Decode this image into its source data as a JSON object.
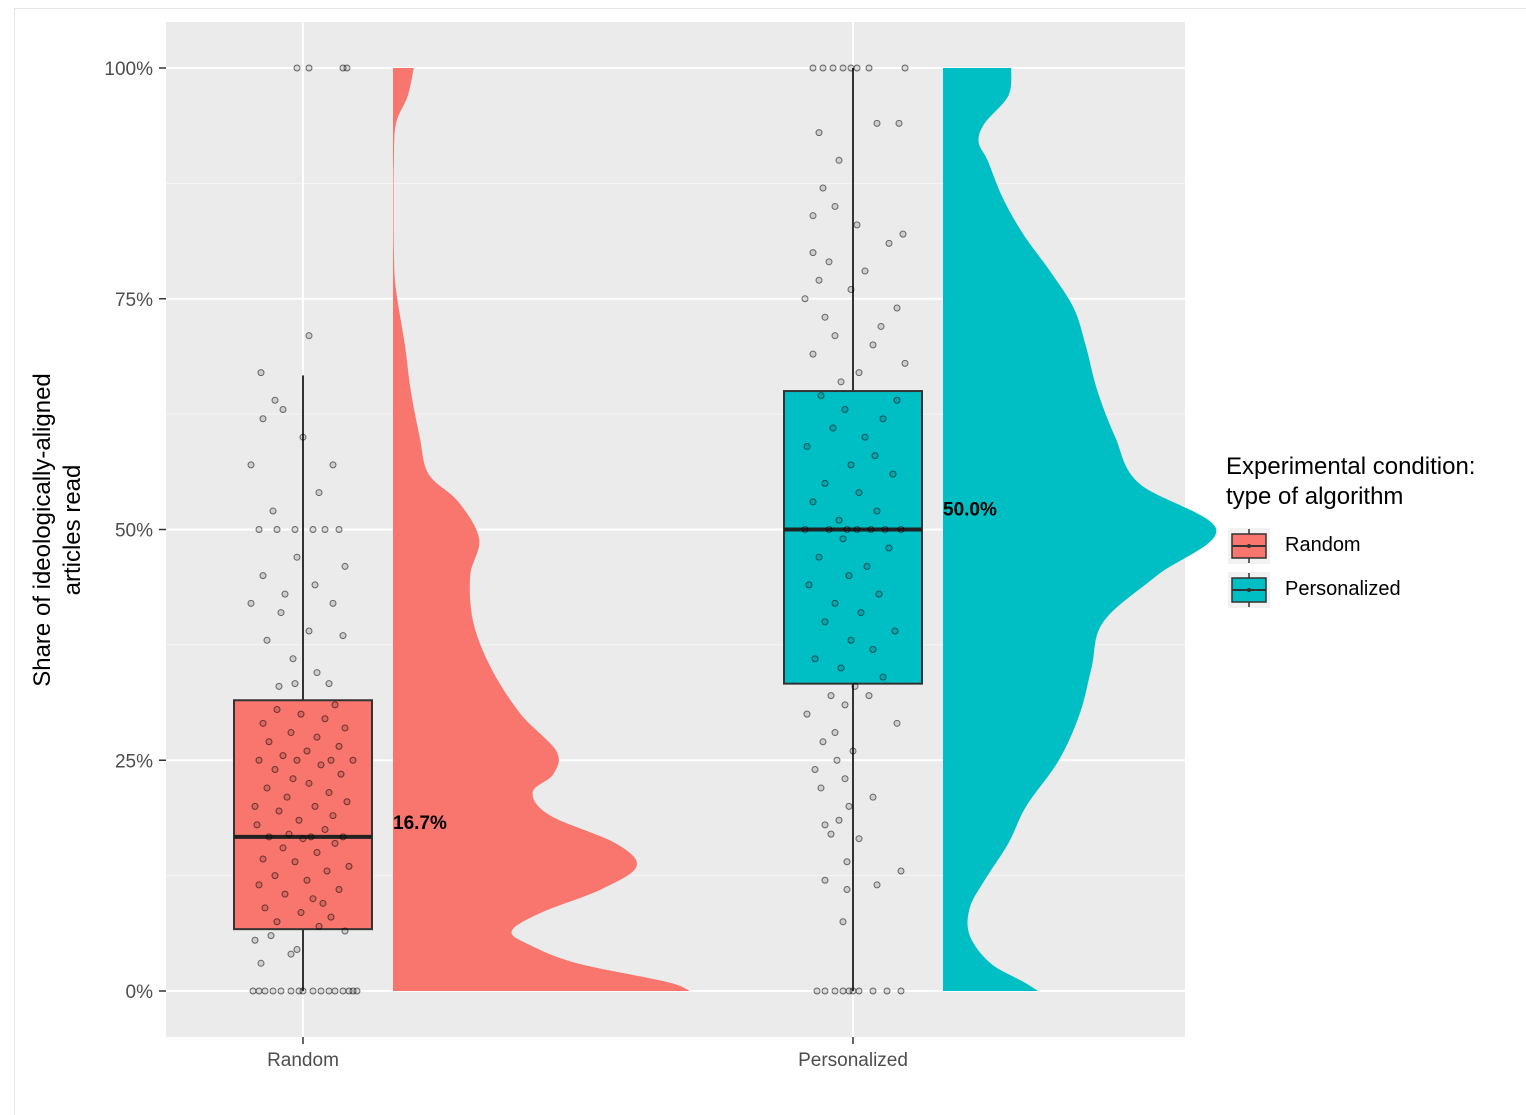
{
  "chart_data": {
    "type": "raincloud",
    "ylabel_line1": "Share of ideologically-aligned",
    "ylabel_line2": "articles read",
    "xlabel": "",
    "categories": [
      "Random",
      "Personalized"
    ],
    "ylim": [
      0,
      1
    ],
    "y_ticks": [
      0,
      0.25,
      0.5,
      0.75,
      1
    ],
    "y_tick_labels": [
      "0%",
      "25%",
      "50%",
      "75%",
      "100%"
    ],
    "grid": true,
    "legend": {
      "title_line1": "Experimental condition:",
      "title_line2": "type of algorithm",
      "placement": "right",
      "entries": [
        "Random",
        "Personalized"
      ]
    },
    "colors": {
      "Random": "#F8766D",
      "Personalized": "#00BFC4",
      "panel": "#EBEBEB",
      "grid": "#FFFFFF"
    },
    "series": [
      {
        "name": "Random",
        "box": {
          "q1": 0.067,
          "median": 0.167,
          "q3": 0.315,
          "whisker_low": 0,
          "whisker_high": 0.667
        },
        "median_label": "16.7%",
        "density": [
          [
            0,
            1.0
          ],
          [
            0.01,
            0.92
          ],
          [
            0.03,
            0.62
          ],
          [
            0.05,
            0.46
          ],
          [
            0.065,
            0.4
          ],
          [
            0.085,
            0.5
          ],
          [
            0.11,
            0.7
          ],
          [
            0.135,
            0.82
          ],
          [
            0.16,
            0.75
          ],
          [
            0.19,
            0.53
          ],
          [
            0.215,
            0.47
          ],
          [
            0.235,
            0.54
          ],
          [
            0.26,
            0.55
          ],
          [
            0.3,
            0.43
          ],
          [
            0.35,
            0.33
          ],
          [
            0.4,
            0.27
          ],
          [
            0.45,
            0.26
          ],
          [
            0.49,
            0.29
          ],
          [
            0.53,
            0.22
          ],
          [
            0.56,
            0.12
          ],
          [
            0.6,
            0.09
          ],
          [
            0.65,
            0.06
          ],
          [
            0.7,
            0.04
          ],
          [
            0.76,
            0.01
          ],
          [
            0.8,
            0.003
          ],
          [
            0.85,
            0.002
          ],
          [
            0.9,
            0.003
          ],
          [
            0.94,
            0.01
          ],
          [
            0.97,
            0.05
          ],
          [
            1.0,
            0.07
          ]
        ],
        "points": [
          [
            0,
            0
          ],
          [
            0,
            -22
          ],
          [
            0,
            -38
          ],
          [
            0,
            -50
          ],
          [
            0,
            -30
          ],
          [
            0,
            18
          ],
          [
            0,
            26
          ],
          [
            0,
            32
          ],
          [
            0,
            40
          ],
          [
            0,
            50
          ],
          [
            0,
            54
          ],
          [
            0,
            -12
          ],
          [
            0,
            10
          ],
          [
            0,
            -4
          ],
          [
            0,
            -44
          ],
          [
            0,
            46
          ],
          [
            0.03,
            -42
          ],
          [
            0.04,
            -12
          ],
          [
            0.045,
            -6
          ],
          [
            0.055,
            -48
          ],
          [
            0.06,
            -32
          ],
          [
            0.065,
            42
          ],
          [
            0.07,
            16
          ],
          [
            0.075,
            -26
          ],
          [
            0.08,
            28
          ],
          [
            0.085,
            -2
          ],
          [
            0.09,
            -38
          ],
          [
            0.095,
            20
          ],
          [
            0.1,
            10
          ],
          [
            0.105,
            -18
          ],
          [
            0.11,
            36
          ],
          [
            0.115,
            -44
          ],
          [
            0.12,
            4
          ],
          [
            0.125,
            -28
          ],
          [
            0.13,
            24
          ],
          [
            0.135,
            46
          ],
          [
            0.14,
            -8
          ],
          [
            0.143,
            -40
          ],
          [
            0.15,
            14
          ],
          [
            0.155,
            -20
          ],
          [
            0.16,
            32
          ],
          [
            0.165,
            0
          ],
          [
            0.167,
            -34
          ],
          [
            0.167,
            8
          ],
          [
            0.167,
            40
          ],
          [
            0.17,
            -14
          ],
          [
            0.175,
            22
          ],
          [
            0.18,
            -46
          ],
          [
            0.185,
            -4
          ],
          [
            0.19,
            30
          ],
          [
            0.195,
            -24
          ],
          [
            0.2,
            -48
          ],
          [
            0.2,
            12
          ],
          [
            0.205,
            44
          ],
          [
            0.21,
            -16
          ],
          [
            0.215,
            26
          ],
          [
            0.22,
            -36
          ],
          [
            0.225,
            6
          ],
          [
            0.23,
            -10
          ],
          [
            0.235,
            38
          ],
          [
            0.24,
            -28
          ],
          [
            0.245,
            18
          ],
          [
            0.25,
            -44
          ],
          [
            0.25,
            -6
          ],
          [
            0.25,
            28
          ],
          [
            0.25,
            50
          ],
          [
            0.255,
            -20
          ],
          [
            0.26,
            4
          ],
          [
            0.265,
            36
          ],
          [
            0.27,
            -34
          ],
          [
            0.275,
            14
          ],
          [
            0.28,
            -12
          ],
          [
            0.285,
            42
          ],
          [
            0.29,
            -40
          ],
          [
            0.295,
            22
          ],
          [
            0.3,
            -2
          ],
          [
            0.305,
            -26
          ],
          [
            0.31,
            32
          ],
          [
            0.33,
            -24
          ],
          [
            0.333,
            -8
          ],
          [
            0.333,
            26
          ],
          [
            0.345,
            14
          ],
          [
            0.36,
            -10
          ],
          [
            0.38,
            -36
          ],
          [
            0.385,
            40
          ],
          [
            0.39,
            6
          ],
          [
            0.41,
            -22
          ],
          [
            0.42,
            30
          ],
          [
            0.42,
            -52
          ],
          [
            0.43,
            -18
          ],
          [
            0.44,
            12
          ],
          [
            0.45,
            -40
          ],
          [
            0.46,
            42
          ],
          [
            0.47,
            -6
          ],
          [
            0.5,
            -44
          ],
          [
            0.5,
            -26
          ],
          [
            0.5,
            -8
          ],
          [
            0.5,
            10
          ],
          [
            0.5,
            22
          ],
          [
            0.5,
            36
          ],
          [
            0.52,
            -30
          ],
          [
            0.54,
            16
          ],
          [
            0.57,
            -52
          ],
          [
            0.57,
            30
          ],
          [
            0.6,
            0
          ],
          [
            0.62,
            -40
          ],
          [
            0.63,
            -20
          ],
          [
            0.64,
            -28
          ],
          [
            0.67,
            -42
          ],
          [
            0.71,
            6
          ],
          [
            1.0,
            -6
          ],
          [
            1.0,
            6
          ],
          [
            1.0,
            40
          ],
          [
            1.0,
            44
          ]
        ]
      },
      {
        "name": "Personalized",
        "box": {
          "q1": 0.333,
          "median": 0.5,
          "q3": 0.65,
          "whisker_low": 0,
          "whisker_high": 1.0
        },
        "median_label": "50.0%",
        "density": [
          [
            0,
            0.32
          ],
          [
            0.01,
            0.27
          ],
          [
            0.03,
            0.16
          ],
          [
            0.06,
            0.09
          ],
          [
            0.09,
            0.09
          ],
          [
            0.12,
            0.14
          ],
          [
            0.16,
            0.22
          ],
          [
            0.2,
            0.28
          ],
          [
            0.25,
            0.39
          ],
          [
            0.3,
            0.46
          ],
          [
            0.35,
            0.5
          ],
          [
            0.4,
            0.54
          ],
          [
            0.45,
            0.72
          ],
          [
            0.5,
            0.92
          ],
          [
            0.55,
            0.66
          ],
          [
            0.6,
            0.58
          ],
          [
            0.65,
            0.52
          ],
          [
            0.7,
            0.48
          ],
          [
            0.74,
            0.44
          ],
          [
            0.78,
            0.36
          ],
          [
            0.82,
            0.27
          ],
          [
            0.86,
            0.2
          ],
          [
            0.9,
            0.15
          ],
          [
            0.92,
            0.12
          ],
          [
            0.94,
            0.14
          ],
          [
            0.97,
            0.22
          ],
          [
            1.0,
            0.23
          ]
        ],
        "points": [
          [
            0,
            -36
          ],
          [
            0,
            -28
          ],
          [
            0,
            -18
          ],
          [
            0,
            -10
          ],
          [
            0,
            -4
          ],
          [
            0,
            0
          ],
          [
            0,
            6
          ],
          [
            0,
            20
          ],
          [
            0,
            34
          ],
          [
            0,
            48
          ],
          [
            0.075,
            -10
          ],
          [
            0.11,
            -6
          ],
          [
            0.115,
            24
          ],
          [
            0.12,
            -28
          ],
          [
            0.13,
            48
          ],
          [
            0.14,
            -6
          ],
          [
            0.165,
            6
          ],
          [
            0.17,
            -22
          ],
          [
            0.18,
            -28
          ],
          [
            0.185,
            -14
          ],
          [
            0.2,
            -4
          ],
          [
            0.21,
            20
          ],
          [
            0.22,
            -32
          ],
          [
            0.23,
            -8
          ],
          [
            0.24,
            -38
          ],
          [
            0.25,
            -16
          ],
          [
            0.26,
            0
          ],
          [
            0.27,
            -30
          ],
          [
            0.28,
            -18
          ],
          [
            0.29,
            44
          ],
          [
            0.3,
            -46
          ],
          [
            0.31,
            -8
          ],
          [
            0.32,
            16
          ],
          [
            0.32,
            -22
          ],
          [
            0.33,
            2
          ],
          [
            0.34,
            30
          ],
          [
            0.35,
            -12
          ],
          [
            0.36,
            -38
          ],
          [
            0.37,
            20
          ],
          [
            0.38,
            -2
          ],
          [
            0.39,
            42
          ],
          [
            0.4,
            -28
          ],
          [
            0.41,
            8
          ],
          [
            0.42,
            -18
          ],
          [
            0.43,
            26
          ],
          [
            0.44,
            -44
          ],
          [
            0.45,
            -4
          ],
          [
            0.46,
            14
          ],
          [
            0.47,
            -34
          ],
          [
            0.48,
            36
          ],
          [
            0.49,
            -10
          ],
          [
            0.5,
            -48
          ],
          [
            0.5,
            -24
          ],
          [
            0.5,
            -6
          ],
          [
            0.5,
            4
          ],
          [
            0.5,
            18
          ],
          [
            0.5,
            32
          ],
          [
            0.5,
            48
          ],
          [
            0.51,
            -14
          ],
          [
            0.52,
            24
          ],
          [
            0.53,
            -40
          ],
          [
            0.54,
            6
          ],
          [
            0.55,
            -28
          ],
          [
            0.56,
            40
          ],
          [
            0.57,
            -2
          ],
          [
            0.58,
            22
          ],
          [
            0.59,
            -46
          ],
          [
            0.6,
            12
          ],
          [
            0.61,
            -20
          ],
          [
            0.62,
            30
          ],
          [
            0.63,
            -8
          ],
          [
            0.64,
            44
          ],
          [
            0.645,
            -32
          ],
          [
            0.66,
            -12
          ],
          [
            0.67,
            6
          ],
          [
            0.68,
            52
          ],
          [
            0.69,
            -40
          ],
          [
            0.7,
            20
          ],
          [
            0.71,
            -18
          ],
          [
            0.72,
            28
          ],
          [
            0.73,
            -28
          ],
          [
            0.74,
            44
          ],
          [
            0.75,
            -48
          ],
          [
            0.76,
            -2
          ],
          [
            0.77,
            -34
          ],
          [
            0.78,
            12
          ],
          [
            0.79,
            -24
          ],
          [
            0.8,
            -40
          ],
          [
            0.81,
            36
          ],
          [
            0.82,
            50
          ],
          [
            0.83,
            4
          ],
          [
            0.84,
            -40
          ],
          [
            0.85,
            -18
          ],
          [
            0.87,
            -30
          ],
          [
            0.9,
            -14
          ],
          [
            0.93,
            -34
          ],
          [
            0.94,
            24
          ],
          [
            0.94,
            46
          ],
          [
            1.0,
            -40
          ],
          [
            1.0,
            -30
          ],
          [
            1.0,
            -20
          ],
          [
            1.0,
            -10
          ],
          [
            1.0,
            -2
          ],
          [
            1.0,
            4
          ],
          [
            1.0,
            16
          ],
          [
            1.0,
            52
          ]
        ]
      }
    ]
  }
}
